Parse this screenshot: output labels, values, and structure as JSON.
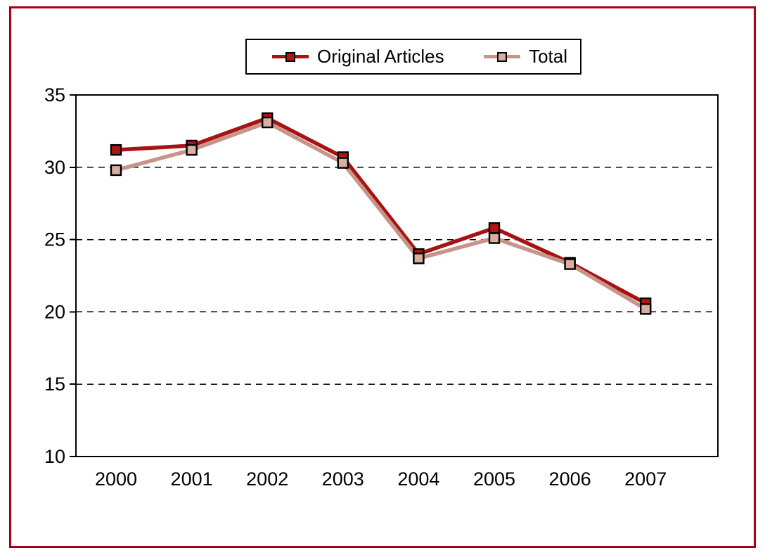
{
  "frame": {
    "border_color": "#AA0014",
    "background": "#FFFFFF"
  },
  "legend": {
    "entries": [
      {
        "label": "Original Articles",
        "line_color": "#A81212",
        "marker_fill": "#B41414",
        "marker_border": "#000000"
      },
      {
        "label": "Total",
        "line_color": "#C69488",
        "marker_fill": "#D8AFA0",
        "marker_border": "#000000"
      }
    ]
  },
  "chart_data": {
    "type": "line",
    "title": "",
    "xlabel": "",
    "ylabel": "",
    "categories": [
      "2000",
      "2001",
      "2002",
      "2003",
      "2004",
      "2005",
      "2006",
      "2007"
    ],
    "series": [
      {
        "name": "Original Articles",
        "line_color": "#A81212",
        "marker_fill": "#B41414",
        "marker_border": "#000000",
        "values": [
          31.2,
          31.5,
          33.4,
          30.7,
          24.0,
          25.8,
          23.4,
          20.6
        ]
      },
      {
        "name": "Total",
        "line_color": "#C69488",
        "marker_fill": "#D8AFA0",
        "marker_border": "#000000",
        "values": [
          29.8,
          31.2,
          33.1,
          30.3,
          23.7,
          25.1,
          23.3,
          20.2
        ]
      }
    ],
    "ylim": [
      10,
      35
    ],
    "yticks": [
      10,
      15,
      20,
      25,
      30,
      35
    ],
    "gridlines": [
      15,
      20,
      25,
      30
    ],
    "grid_style": "dashed",
    "legend_position": "top",
    "marker": "square",
    "axis_color": "#000000",
    "tick_label_color": "#000000"
  }
}
